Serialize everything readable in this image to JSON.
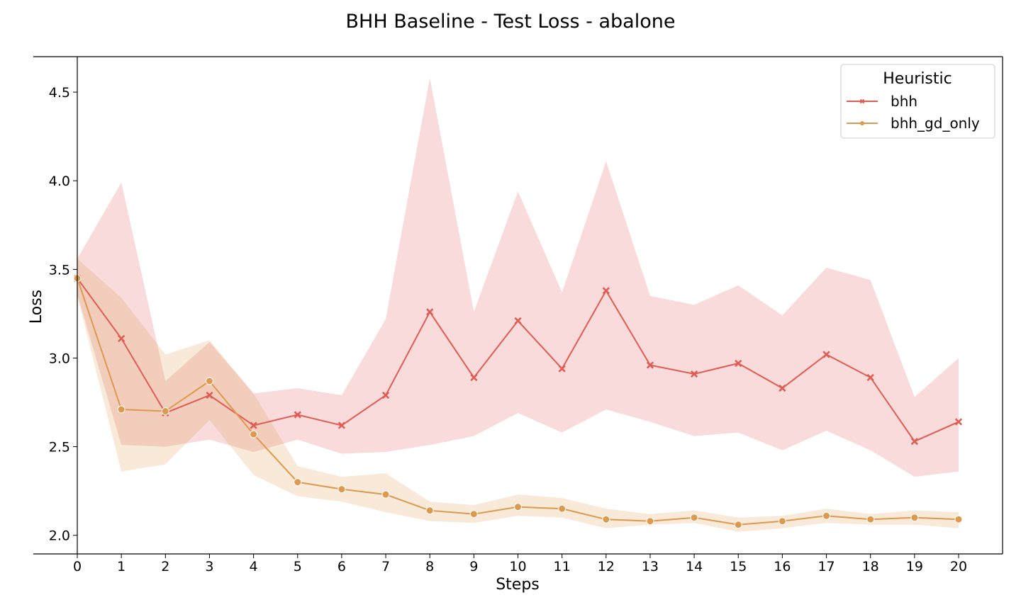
{
  "chart_data": {
    "type": "line",
    "title": "BHH Baseline - Test Loss - abalone",
    "xlabel": "Steps",
    "ylabel": "Loss",
    "xlim": [
      -1,
      21.5
    ],
    "ylim": [
      1.895,
      4.7
    ],
    "xticks": [
      "0",
      "1",
      "2",
      "3",
      "4",
      "5",
      "6",
      "7",
      "8",
      "9",
      "10",
      "11",
      "12",
      "13",
      "14",
      "15",
      "16",
      "17",
      "18",
      "19",
      "20"
    ],
    "yticks": [
      {
        "value": 2.0,
        "label": "2.0"
      },
      {
        "value": 2.5,
        "label": "2.5"
      },
      {
        "value": 3.0,
        "label": "3.0"
      },
      {
        "value": 3.5,
        "label": "3.5"
      },
      {
        "value": 4.0,
        "label": "4.0"
      },
      {
        "value": 4.5,
        "label": "4.5"
      }
    ],
    "grid": false,
    "legend": {
      "title": "Heuristic",
      "position": "top-right"
    },
    "x": [
      0,
      1,
      2,
      3,
      4,
      5,
      6,
      7,
      8,
      9,
      10,
      11,
      12,
      13,
      14,
      15,
      16,
      17,
      18,
      19,
      20
    ],
    "series": [
      {
        "name": "bhh",
        "color": "#e05c55",
        "marker": "x",
        "values": [
          3.45,
          3.11,
          2.69,
          2.79,
          2.62,
          2.68,
          2.62,
          2.79,
          3.26,
          2.89,
          3.21,
          2.94,
          3.38,
          2.96,
          2.91,
          2.97,
          2.83,
          3.02,
          2.89,
          2.53,
          2.64
        ],
        "ci_upper": [
          3.56,
          3.99,
          2.87,
          3.09,
          2.8,
          2.83,
          2.79,
          3.22,
          4.58,
          3.26,
          3.94,
          3.37,
          4.11,
          3.35,
          3.3,
          3.41,
          3.24,
          3.51,
          3.44,
          2.78,
          3.0
        ],
        "ci_lower": [
          3.36,
          2.51,
          2.5,
          2.54,
          2.47,
          2.54,
          2.46,
          2.47,
          2.51,
          2.56,
          2.69,
          2.58,
          2.71,
          2.64,
          2.56,
          2.58,
          2.48,
          2.59,
          2.48,
          2.33,
          2.36
        ]
      },
      {
        "name": "bhh_gd_only",
        "color": "#dd9a4e",
        "marker": "o",
        "values": [
          3.45,
          2.71,
          2.7,
          2.87,
          2.57,
          2.3,
          2.26,
          2.23,
          2.14,
          2.12,
          2.16,
          2.15,
          2.09,
          2.08,
          2.1,
          2.06,
          2.08,
          2.11,
          2.09,
          2.1,
          2.09
        ],
        "ci_upper": [
          3.56,
          3.34,
          3.02,
          3.1,
          2.8,
          2.39,
          2.33,
          2.35,
          2.19,
          2.17,
          2.23,
          2.21,
          2.15,
          2.12,
          2.14,
          2.1,
          2.11,
          2.15,
          2.12,
          2.14,
          2.13
        ],
        "ci_lower": [
          3.35,
          2.36,
          2.4,
          2.65,
          2.34,
          2.22,
          2.19,
          2.13,
          2.08,
          2.07,
          2.11,
          2.1,
          2.04,
          2.06,
          2.07,
          2.02,
          2.04,
          2.07,
          2.06,
          2.06,
          2.04
        ]
      }
    ]
  }
}
